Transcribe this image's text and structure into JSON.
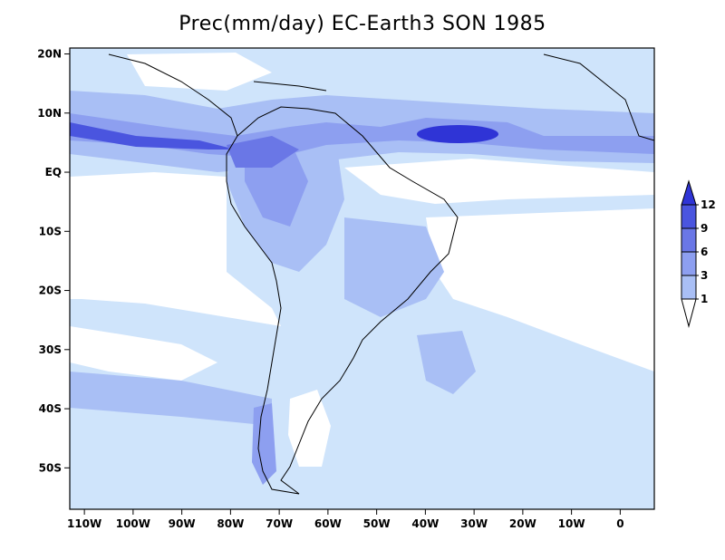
{
  "title": "Prec(mm/day) EC-Earth3 SON 1985",
  "map": {
    "lon_range": [
      -113,
      7
    ],
    "lat_range": [
      -57,
      21
    ],
    "x_ticks": [
      {
        "lon": -110,
        "label": "110W"
      },
      {
        "lon": -100,
        "label": "100W"
      },
      {
        "lon": -90,
        "label": "90W"
      },
      {
        "lon": -80,
        "label": "80W"
      },
      {
        "lon": -70,
        "label": "70W"
      },
      {
        "lon": -60,
        "label": "60W"
      },
      {
        "lon": -50,
        "label": "50W"
      },
      {
        "lon": -40,
        "label": "40W"
      },
      {
        "lon": -30,
        "label": "30W"
      },
      {
        "lon": -20,
        "label": "20W"
      },
      {
        "lon": -10,
        "label": "10W"
      },
      {
        "lon": 0,
        "label": "0"
      }
    ],
    "y_ticks": [
      {
        "lat": 20,
        "label": "20N"
      },
      {
        "lat": 10,
        "label": "10N"
      },
      {
        "lat": 0,
        "label": "EQ"
      },
      {
        "lat": -10,
        "label": "10S"
      },
      {
        "lat": -20,
        "label": "20S"
      },
      {
        "lat": -30,
        "label": "30S"
      },
      {
        "lat": -40,
        "label": "40S"
      },
      {
        "lat": -50,
        "label": "50S"
      }
    ]
  },
  "colorbar": {
    "levels": [
      "1",
      "3",
      "6",
      "9",
      "12"
    ],
    "colors": [
      "#ffffff",
      "#cfe4fb",
      "#a9bff5",
      "#8d9ff0",
      "#6a77e6",
      "#4a55df",
      "#2f34d6"
    ]
  }
}
